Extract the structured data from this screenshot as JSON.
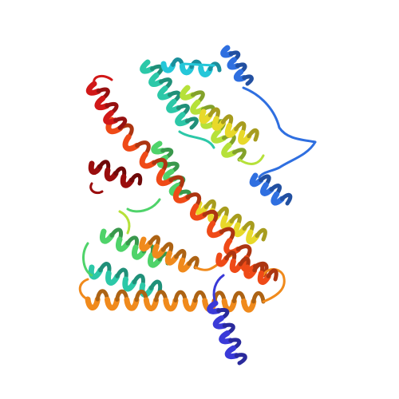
{
  "image": {
    "subject": "protein-ribbon-cartoon",
    "background": "#ffffff",
    "palette": {
      "n_terminus": "#3a3ad8",
      "blue": "#2f6fe0",
      "cyan": "#25c7d9",
      "teal": "#2cc8a8",
      "green": "#4fd36a",
      "lime": "#b6e13a",
      "yellow": "#e8d92a",
      "orange": "#f08a1c",
      "red_orange": "#ef4a17",
      "red": "#d11818",
      "c_terminus": "#9a0d0d"
    }
  }
}
